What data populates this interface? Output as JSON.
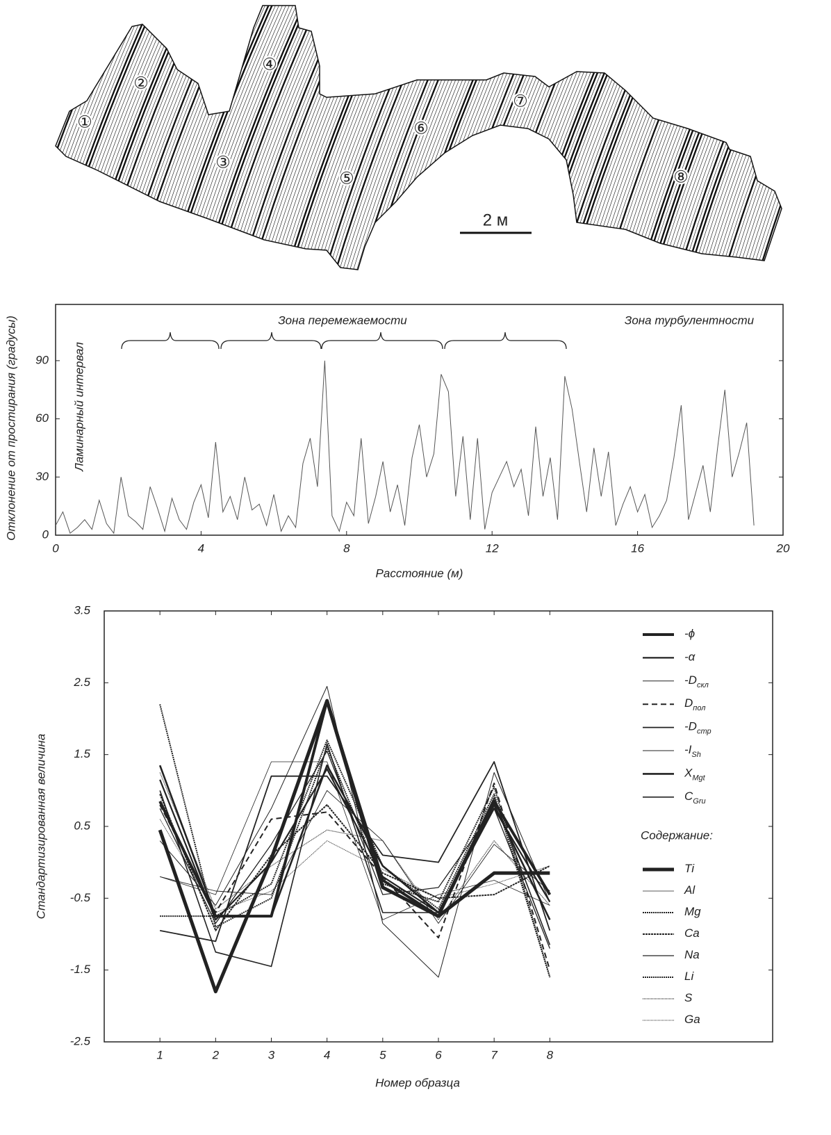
{
  "drawing": {
    "labels": [
      "①",
      "②",
      "③",
      "④",
      "⑤",
      "⑥",
      "⑦",
      "⑧"
    ],
    "scale_label": "2 м"
  },
  "chart_data": [
    {
      "type": "line",
      "x_label": "Расстояние (м)",
      "y_label": "Отклонение от простирания (градусы)",
      "annotations": [
        "Ламинарный интервал",
        "Зона перемежаемости",
        "Зона турбулентности"
      ],
      "color": "#555555",
      "x": [
        0,
        0.2,
        0.4,
        0.6,
        0.8,
        1,
        1.2,
        1.4,
        1.6,
        1.8,
        2,
        2.2,
        2.4,
        2.6,
        2.8,
        3,
        3.2,
        3.4,
        3.6,
        3.8,
        4,
        4.2,
        4.4,
        4.6,
        4.8,
        5,
        5.2,
        5.4,
        5.6,
        5.8,
        6,
        6.2,
        6.4,
        6.6,
        6.8,
        7,
        7.2,
        7.4,
        7.6,
        7.8,
        8,
        8.2,
        8.4,
        8.6,
        8.8,
        9,
        9.2,
        9.4,
        9.6,
        9.8,
        10,
        10.2,
        10.4,
        10.6,
        10.8,
        11,
        11.2,
        11.4,
        11.6,
        11.8,
        12,
        12.2,
        12.4,
        12.6,
        12.8,
        13,
        13.2,
        13.4,
        13.6,
        13.8,
        14,
        14.2,
        14.4,
        14.6,
        14.8,
        15,
        15.2,
        15.4,
        15.6,
        15.8,
        16,
        16.2,
        16.4,
        16.6,
        16.8,
        17,
        17.2,
        17.4,
        17.6,
        17.8,
        18,
        18.2,
        18.4,
        18.6,
        18.8,
        19,
        19.2
      ],
      "values": [
        5,
        12,
        1,
        4,
        8,
        3,
        18,
        6,
        1,
        30,
        10,
        7,
        3,
        25,
        14,
        2,
        19,
        8,
        3,
        17,
        26,
        9,
        48,
        12,
        20,
        8,
        30,
        13,
        16,
        5,
        21,
        2,
        10,
        4,
        37,
        50,
        25,
        90,
        10,
        2,
        17,
        10,
        50,
        6,
        20,
        38,
        12,
        26,
        5,
        40,
        57,
        30,
        42,
        83,
        74,
        20,
        51,
        8,
        50,
        3,
        22,
        30,
        38,
        25,
        34,
        10,
        56,
        20,
        40,
        8,
        82,
        65,
        38,
        12,
        45,
        20,
        43,
        5,
        16,
        25,
        12,
        21,
        4,
        10,
        18,
        40,
        67,
        8,
        22,
        36,
        12,
        45,
        75,
        30,
        43,
        58,
        5
      ],
      "xlim": [
        0,
        20
      ],
      "xticks": [
        0,
        4,
        8,
        12,
        16,
        20
      ],
      "ylim": [
        0,
        119
      ],
      "yticks": [
        0,
        30,
        60,
        90
      ]
    },
    {
      "type": "line",
      "x_label": "Номер образца",
      "y_label": "Стандартизированная величина",
      "legend_heading": "Содержание:",
      "color": "#222222",
      "x": [
        1,
        2,
        3,
        4,
        5,
        6,
        7,
        8
      ],
      "xlim": [
        0,
        12
      ],
      "xticks": [
        1,
        2,
        3,
        4,
        5,
        6,
        7,
        8
      ],
      "ylim": [
        -2.5,
        3.5
      ],
      "yticks": [
        -2.5,
        -1.5,
        -0.5,
        0.5,
        1.5,
        2.5,
        3.5
      ],
      "series": [
        {
          "name": "-ϕ",
          "width": 4,
          "dash": "none",
          "values": [
            0.85,
            -0.75,
            -0.75,
            2.25,
            -0.25,
            -0.75,
            0.85,
            -0.45
          ]
        },
        {
          "name": "-α",
          "width": 2.2,
          "dash": "none",
          "values": [
            1.15,
            -0.8,
            0,
            1.3,
            -0.2,
            -0.7,
            0.75,
            -0.55
          ]
        },
        {
          "name": "-D",
          "name_sub": "скл",
          "width": 1,
          "dash": "none",
          "values": [
            0.3,
            -0.6,
            0.75,
            2.45,
            -0.85,
            -1.6,
            1.25,
            -0.55
          ]
        },
        {
          "name": "D",
          "name_sub": "пол",
          "width": 2,
          "dash": "8 5",
          "values": [
            0.8,
            -0.7,
            0.6,
            0.7,
            -0.2,
            -1.05,
            1.1,
            -1.5
          ]
        },
        {
          "name": "-D",
          "name_sub": "стр",
          "width": 1.8,
          "dash": "none",
          "values": [
            -0.95,
            -1.1,
            1.2,
            1.2,
            0.1,
            0,
            1.4,
            -0.95
          ]
        },
        {
          "name": "-I",
          "name_sub": "Sh",
          "width": 0.9,
          "dash": "none",
          "values": [
            -0.2,
            -0.4,
            -0.45,
            1,
            0.3,
            -0.85,
            0.25,
            -0.4
          ]
        },
        {
          "name": "X",
          "name_sub": "Mgt",
          "width": 2.6,
          "dash": "none",
          "values": [
            1.35,
            -0.75,
            -0.75,
            1.35,
            -0.05,
            -0.7,
            0.8,
            -0.8
          ]
        },
        {
          "name": "C",
          "name_sub": "Gru",
          "width": 1.6,
          "dash": "none",
          "values": [
            1,
            -1.25,
            -1.45,
            1.65,
            -0.7,
            -0.7,
            0.9,
            -1.15
          ]
        },
        {
          "name": "Ti",
          "width": 5,
          "dash": "none",
          "values": [
            0.45,
            -1.8,
            0.05,
            2.25,
            -0.35,
            -0.75,
            -0.15,
            -0.15
          ]
        },
        {
          "name": "Al",
          "width": 0.8,
          "dash": "none",
          "values": [
            -0.2,
            -0.45,
            1.4,
            1.4,
            -0.8,
            -0.45,
            -0.25,
            -0.6
          ]
        },
        {
          "name": "Mg",
          "width": 2,
          "dash": "2 1",
          "values": [
            2.2,
            -0.9,
            -0.5,
            1.6,
            -0.3,
            -0.55,
            1.05,
            -1.6
          ]
        },
        {
          "name": "Ca",
          "width": 2,
          "dash": "3 1",
          "values": [
            0.95,
            -0.95,
            0.1,
            0.8,
            -0.15,
            -0.5,
            -0.45,
            -0.05
          ]
        },
        {
          "name": "Na",
          "width": 1.3,
          "dash": "none",
          "values": [
            0.75,
            -0.85,
            0.25,
            1.55,
            -0.45,
            -0.35,
            0.75,
            -1.2
          ]
        },
        {
          "name": "Li",
          "width": 2,
          "dash": "2 1",
          "values": [
            -0.75,
            -0.75,
            -0.3,
            1.7,
            -0.05,
            -0.65,
            0.95,
            -1.6
          ]
        },
        {
          "name": "S",
          "width": 1.2,
          "dash": "1 1",
          "values": [
            1.25,
            -0.65,
            -0.05,
            0.45,
            0.3,
            -0.8,
            0.3,
            -0.6
          ]
        },
        {
          "name": "Ga",
          "width": 1,
          "dash": "1 1",
          "values": [
            0.6,
            -0.7,
            -0.4,
            0.3,
            -0.1,
            -0.5,
            -0.3,
            -0.05
          ]
        }
      ]
    }
  ]
}
